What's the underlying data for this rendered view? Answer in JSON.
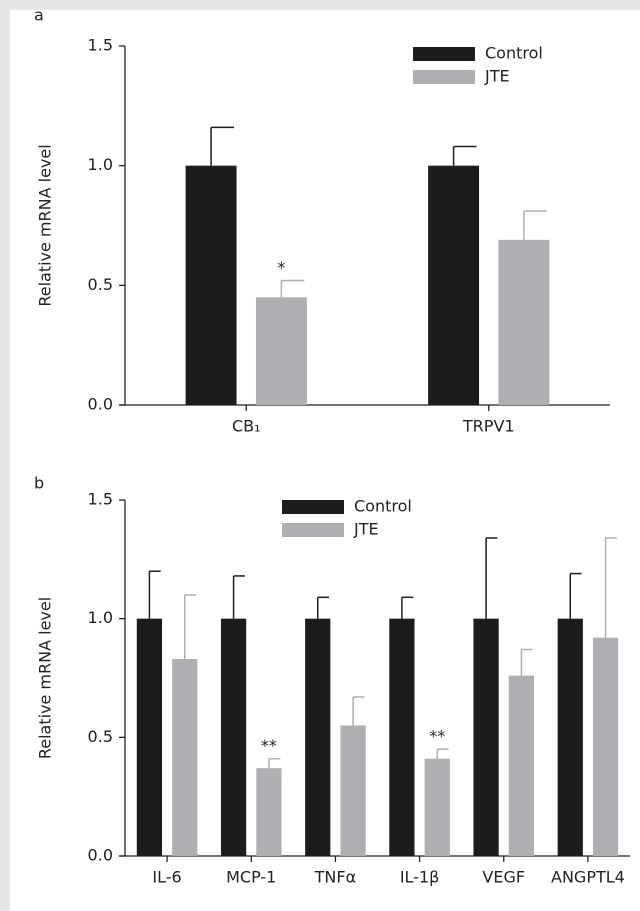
{
  "chart_data": [
    {
      "type": "bar",
      "panel": "a",
      "ylabel": "Relative mRNA level",
      "categories": [
        "CB₁",
        "TRPV1"
      ],
      "series": [
        {
          "name": "Control",
          "color": "#1c1c1c",
          "values": [
            1.0,
            1.0
          ],
          "errors": [
            0.16,
            0.08
          ]
        },
        {
          "name": "JTE",
          "color": "#adafb2",
          "values": [
            0.45,
            0.69
          ],
          "errors": [
            0.07,
            0.12
          ],
          "significance": [
            "*",
            null
          ]
        }
      ],
      "ylim": [
        0,
        1.5
      ],
      "yticks": [
        {
          "value": 0,
          "label": "0.0"
        },
        {
          "value": 0.5,
          "label": "0.5"
        },
        {
          "value": 1,
          "label": "1.0"
        },
        {
          "value": 1.5,
          "label": "1.5"
        }
      ]
    },
    {
      "type": "bar",
      "panel": "b",
      "ylabel": "Relative mRNA level",
      "categories": [
        "IL-6",
        "MCP-1",
        "TNFα",
        "IL-1β",
        "VEGF",
        "ANGPTL4"
      ],
      "series": [
        {
          "name": "Control",
          "color": "#1c1c1c",
          "values": [
            1.0,
            1.0,
            1.0,
            1.0,
            1.0,
            1.0
          ],
          "errors": [
            0.2,
            0.18,
            0.09,
            0.09,
            0.34,
            0.19
          ]
        },
        {
          "name": "JTE",
          "color": "#adafb2",
          "values": [
            0.83,
            0.37,
            0.55,
            0.41,
            0.76,
            0.92
          ],
          "errors": [
            0.27,
            0.04,
            0.12,
            0.04,
            0.11,
            0.42
          ],
          "significance": [
            null,
            "**",
            null,
            "**",
            null,
            null
          ]
        }
      ],
      "ylim": [
        0,
        1.5
      ],
      "yticks": [
        {
          "value": 0,
          "label": "0.0"
        },
        {
          "value": 0.5,
          "label": "0.5"
        },
        {
          "value": 1,
          "label": "1.0"
        },
        {
          "value": 1.5,
          "label": "1.5"
        }
      ]
    }
  ]
}
